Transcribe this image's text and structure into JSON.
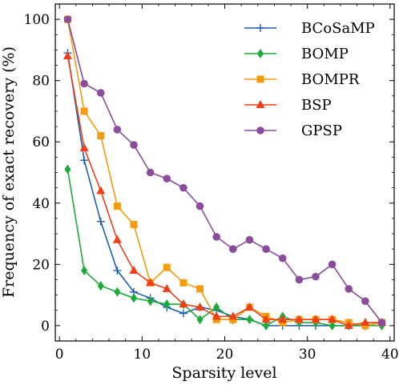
{
  "chart_data": {
    "type": "line",
    "title": "",
    "xlabel": "Sparsity level",
    "ylabel": "Frequency of exact recovery (%)",
    "xlim": [
      -0.5,
      40.5
    ],
    "ylim": [
      -5,
      105
    ],
    "xticks": [
      0,
      10,
      20,
      30,
      40
    ],
    "yticks": [
      0,
      20,
      40,
      60,
      80,
      100
    ],
    "grid": false,
    "legend_position": "top-right",
    "x": [
      1,
      3,
      5,
      7,
      9,
      11,
      13,
      15,
      17,
      19,
      21,
      23,
      25,
      27,
      29,
      31,
      33,
      35,
      37,
      39
    ],
    "series": [
      {
        "name": "BCoSaMP",
        "color": "#1f5fad",
        "marker": "plus",
        "values": [
          89,
          54,
          34,
          18,
          11,
          9,
          6,
          4,
          6,
          5,
          3,
          2,
          0,
          0,
          0,
          0,
          0,
          0,
          0,
          1
        ]
      },
      {
        "name": "BOMP",
        "color": "#1aab3a",
        "marker": "diamond",
        "values": [
          51,
          18,
          13,
          11,
          9,
          8,
          7,
          7,
          2,
          6,
          2,
          2,
          0,
          3,
          1,
          1,
          0,
          0,
          0,
          0
        ]
      },
      {
        "name": "BOMPR",
        "color": "#f59b0e",
        "marker": "square",
        "values": [
          100,
          70,
          62,
          39,
          33,
          14,
          19,
          14,
          12,
          2,
          2,
          6,
          3,
          1,
          2,
          2,
          2,
          1,
          0,
          1
        ]
      },
      {
        "name": "BSP",
        "color": "#ef3f17",
        "marker": "triangle",
        "values": [
          88,
          58,
          44,
          28,
          18,
          14,
          12,
          7,
          6,
          3,
          3,
          6,
          2,
          2,
          2,
          2,
          2,
          0,
          1,
          1
        ]
      },
      {
        "name": "GPSP",
        "color": "#8a4c9b",
        "marker": "circle",
        "values": [
          100,
          79,
          76,
          64,
          59,
          50,
          48,
          45,
          39,
          29,
          25,
          28,
          25,
          22,
          15,
          16,
          20,
          12,
          8,
          1
        ]
      }
    ]
  }
}
